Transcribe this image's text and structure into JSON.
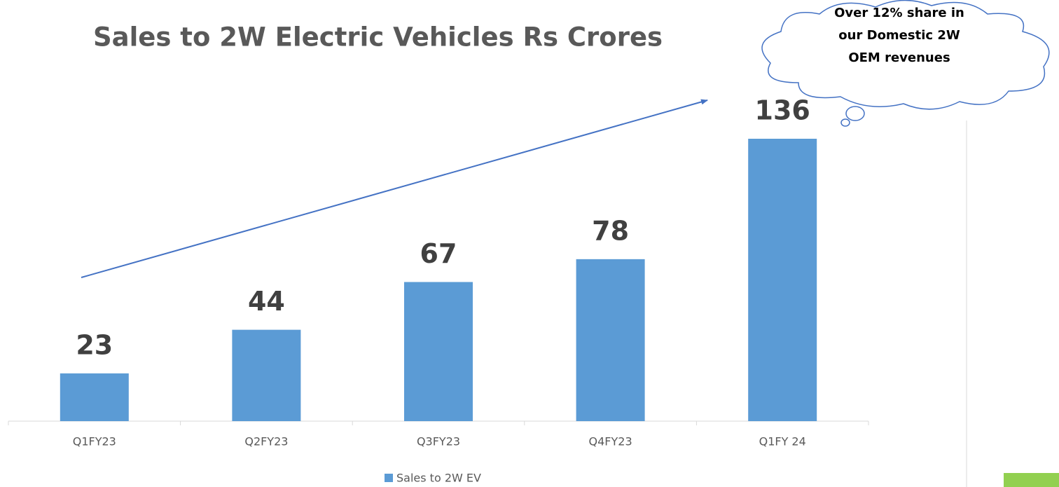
{
  "chart_data": {
    "type": "bar",
    "title": "Sales to 2W Electric Vehicles Rs Crores",
    "categories": [
      "Q1FY23",
      "Q2FY23",
      "Q3FY23",
      "Q4FY23",
      "Q1FY 24"
    ],
    "series": [
      {
        "name": "Sales to 2W EV",
        "color": "#5b9bd5",
        "values": [
          23,
          44,
          67,
          78,
          136
        ]
      }
    ],
    "annotation": [
      "Over 12% share in",
      "our Domestic 2W",
      "OEM revenues"
    ],
    "legend": "bottom"
  }
}
